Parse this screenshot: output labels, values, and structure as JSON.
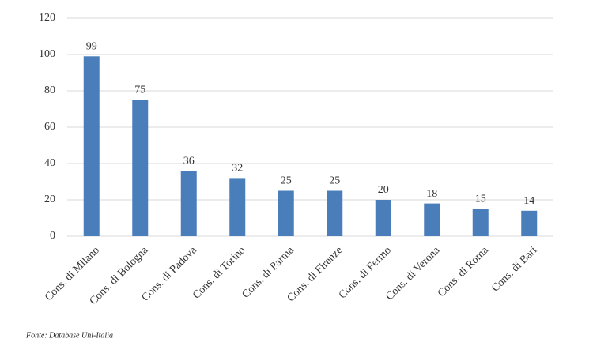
{
  "chart_data": {
    "type": "bar",
    "categories": [
      "Cons. di Milano",
      "Cons. di Bologna",
      "Cons. di Padova",
      "Cons. di Torino",
      "Cons. di Parma",
      "Cons. di Firenze",
      "Cons. di Fermo",
      "Cons. di Verona",
      "Cons. di Roma",
      "Cons. di Bari"
    ],
    "values": [
      99,
      75,
      36,
      32,
      25,
      25,
      20,
      18,
      15,
      14
    ],
    "color": "#4a7ebb",
    "ylim": [
      0,
      120
    ],
    "yticks": [
      0,
      20,
      40,
      60,
      80,
      100,
      120
    ],
    "grid": true,
    "source": "Fonte: Database Uni-Italia"
  }
}
